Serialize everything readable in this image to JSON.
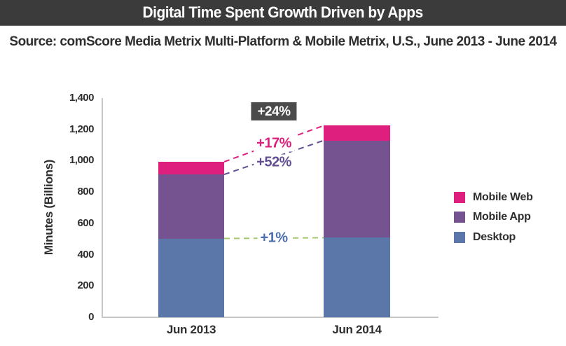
{
  "header": {
    "title": "Digital Time Spent Growth Driven by Apps",
    "bg_color": "#3b3b3b",
    "text_color": "#ffffff"
  },
  "source": {
    "text": "Source: comScore Media Metrix Multi-Platform & Mobile Metrix, U.S., June 2013 - June 2014"
  },
  "chart_data": {
    "type": "bar",
    "stacked": true,
    "title": "Digital Time Spent Growth Driven by Apps",
    "xlabel": "",
    "ylabel": "Minutes (Billions)",
    "categories": [
      "Jun 2013",
      "Jun 2014"
    ],
    "series": [
      {
        "name": "Desktop",
        "color": "#5b77a9",
        "values": [
          503,
          508
        ]
      },
      {
        "name": "Mobile App",
        "color": "#745390",
        "values": [
          409,
          621
        ]
      },
      {
        "name": "Mobile Web",
        "color": "#de1f7d",
        "values": [
          81,
          95
        ]
      }
    ],
    "totals": [
      993,
      1224
    ],
    "ylim": [
      0,
      1400
    ],
    "yticks": [
      0,
      200,
      400,
      600,
      800,
      1000,
      1200,
      1400
    ],
    "grid": false,
    "legend": {
      "position": "right",
      "order": [
        "Mobile Web",
        "Mobile App",
        "Desktop"
      ]
    },
    "annotations": [
      {
        "target": "total",
        "label": "+24%",
        "style": "badge",
        "bg": "#4b4b4b",
        "color": "#ffffff"
      },
      {
        "target": "Mobile Web",
        "label": "+17%",
        "style": "inline",
        "color": "#de1f7d",
        "line_color": "#de1f7d"
      },
      {
        "target": "Mobile App",
        "label": "+52%",
        "style": "inline",
        "color": "#614d92",
        "line_color": "#614d92"
      },
      {
        "target": "Desktop",
        "label": "+1%",
        "style": "inline",
        "color": "#4b70ad",
        "line_color": "#a4c870"
      }
    ],
    "axis_color": "#c8c8c8",
    "tick_text_color": "#2e2e2e"
  }
}
